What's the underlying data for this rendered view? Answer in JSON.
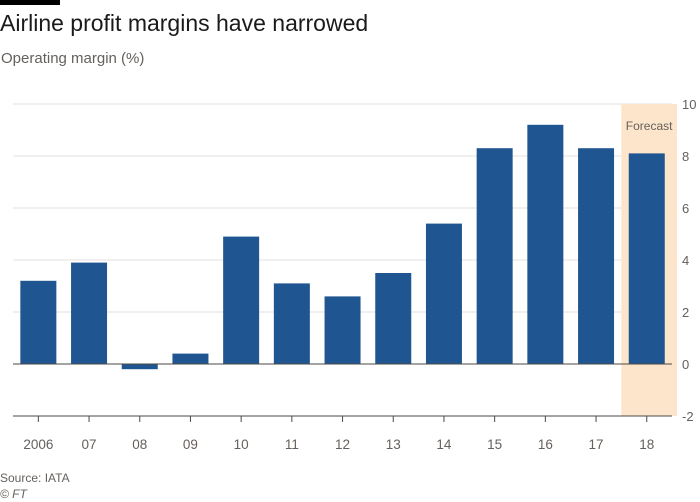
{
  "title": "Airline profit margins have narrowed",
  "subtitle": "Operating margin (%)",
  "source": "Source: IATA",
  "copyright": "© FT",
  "colors": {
    "bar": "#1f5590",
    "forecast_shade": "#fde5cc",
    "grid": "#e6e2dd",
    "zero_line": "#4d4945"
  },
  "chart_data": {
    "type": "bar",
    "categories": [
      "2006",
      "07",
      "08",
      "09",
      "10",
      "11",
      "12",
      "13",
      "14",
      "15",
      "16",
      "17",
      "18"
    ],
    "values": [
      3.2,
      3.9,
      -0.2,
      0.4,
      4.9,
      3.1,
      2.6,
      3.5,
      5.4,
      8.3,
      9.2,
      8.3,
      8.1
    ],
    "ylim": [
      -2,
      10
    ],
    "yticks": [
      -2,
      0,
      2,
      4,
      6,
      8,
      10
    ],
    "y_axis_side": "right",
    "grid": true,
    "forecast": {
      "label": "Forecast",
      "categories": [
        "18"
      ]
    }
  }
}
